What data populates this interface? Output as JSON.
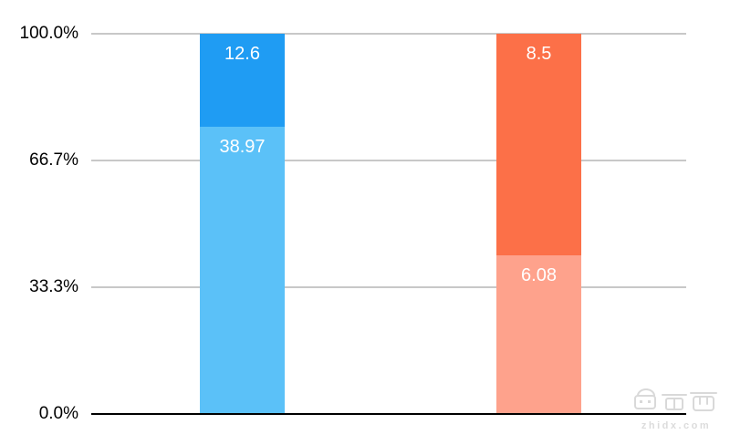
{
  "colors": {
    "background": "#ffffff",
    "gridline": "#c8c8c8",
    "axis_line": "#000000",
    "tick_text": "#000000",
    "bar_label_text": "#ffffff",
    "watermark_text": "#dcdcdc"
  },
  "watermark": {
    "brand": "智东西",
    "site": "zhidx.com"
  },
  "chart_data": {
    "type": "bar",
    "subtype": "stacked-column-100-percent",
    "categories": [
      "",
      ""
    ],
    "series": [
      {
        "name": "top-segment",
        "values": [
          12.6,
          8.5
        ],
        "colors": [
          "#1f9cf3",
          "#fc7048"
        ]
      },
      {
        "name": "bottom-segment",
        "values": [
          38.97,
          6.08
        ],
        "colors": [
          "#5bc1f8",
          "#fea28c"
        ]
      }
    ],
    "data_labels": [
      [
        "12.6",
        "8.5"
      ],
      [
        "38.97",
        "6.08"
      ]
    ],
    "yticks": [
      "100.0%",
      "66.7%",
      "33.3%",
      "0.0%"
    ],
    "ylim": [
      0,
      100
    ],
    "grid": true,
    "legend": false
  }
}
